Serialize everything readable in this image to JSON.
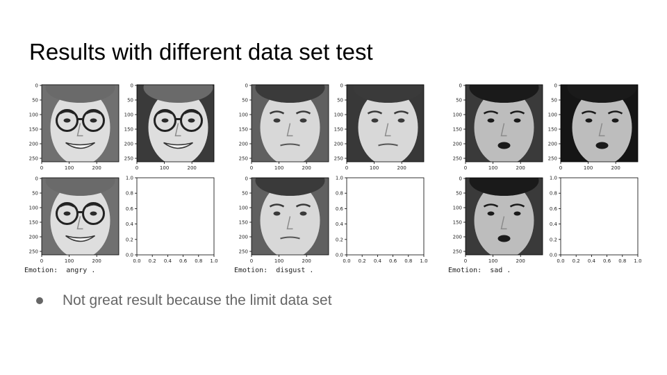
{
  "slide": {
    "title": "Results with different data set test",
    "bullet": "Not great result because the limit data set"
  },
  "axes": {
    "image_y_ticks": [
      "0",
      "50",
      "100",
      "150",
      "200",
      "250"
    ],
    "image_x_ticks": [
      "0",
      "100",
      "200"
    ],
    "empty_y_ticks": [
      "1.0",
      "0.8",
      "0.6",
      "0.4",
      "0.2",
      "0.0"
    ],
    "empty_x_ticks": [
      "0.0",
      "0.2",
      "0.4",
      "0.6",
      "0.8",
      "1.0"
    ]
  },
  "groups": [
    {
      "emotion_label": "Emotion:",
      "emotion_value": "angry .",
      "tone": "light",
      "glasses": true
    },
    {
      "emotion_label": "Emotion:",
      "emotion_value": "disgust .",
      "tone": "pale",
      "glasses": false
    },
    {
      "emotion_label": "Emotion:",
      "emotion_value": "sad .",
      "tone": "dark",
      "glasses": false
    }
  ],
  "colors": {
    "bullet_text": "#666666",
    "title": "#000000"
  }
}
